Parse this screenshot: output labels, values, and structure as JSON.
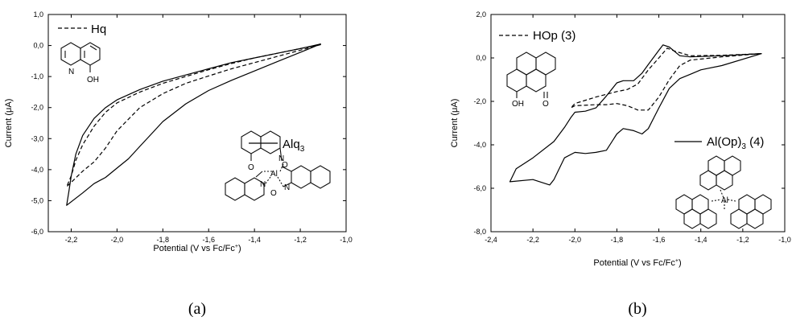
{
  "chart_data": [
    {
      "type": "line",
      "panel_label": "(a)",
      "xlabel": "Potential (V vs Fc/Fc",
      "xlabel_sup": "+",
      "xlabel_end": ")",
      "ylabel": "Current (μA)",
      "xlim": [
        -2.3,
        -1.0
      ],
      "ylim": [
        -6.0,
        1.0
      ],
      "x_ticks": [
        -2.2,
        -2.0,
        -1.8,
        -1.6,
        -1.4,
        -1.2,
        -1.0
      ],
      "x_tick_labels": [
        "-2,2",
        "-2,0",
        "-1,8",
        "-1,6",
        "-1,4",
        "-1,2",
        "-1,0"
      ],
      "y_ticks": [
        1.0,
        0.0,
        -1.0,
        -2.0,
        -3.0,
        -4.0,
        -5.0,
        -6.0
      ],
      "y_tick_labels": [
        "1,0",
        "0,0",
        "-1,0",
        "-2,0",
        "-3,0",
        "-4,0",
        "-5,0",
        "-6,0"
      ],
      "grid": false,
      "series": [
        {
          "name": "Hq",
          "style": "dashed",
          "points": [
            [
              -1.11,
              0.03
            ],
            [
              -1.2,
              -0.15
            ],
            [
              -1.3,
              -0.35
            ],
            [
              -1.4,
              -0.55
            ],
            [
              -1.5,
              -0.75
            ],
            [
              -1.6,
              -0.98
            ],
            [
              -1.7,
              -1.22
            ],
            [
              -1.8,
              -1.55
            ],
            [
              -1.9,
              -2.0
            ],
            [
              -2.0,
              -2.75
            ],
            [
              -2.05,
              -3.3
            ],
            [
              -2.1,
              -3.75
            ],
            [
              -2.15,
              -4.05
            ],
            [
              -2.22,
              -4.55
            ],
            [
              -2.2,
              -4.2
            ],
            [
              -2.18,
              -3.7
            ],
            [
              -2.15,
              -3.2
            ],
            [
              -2.1,
              -2.6
            ],
            [
              -2.05,
              -2.15
            ],
            [
              -2.0,
              -1.85
            ],
            [
              -1.9,
              -1.5
            ],
            [
              -1.8,
              -1.22
            ],
            [
              -1.7,
              -1.0
            ],
            [
              -1.6,
              -0.78
            ],
            [
              -1.5,
              -0.58
            ],
            [
              -1.4,
              -0.4
            ],
            [
              -1.3,
              -0.25
            ],
            [
              -1.2,
              -0.1
            ],
            [
              -1.11,
              0.03
            ]
          ]
        },
        {
          "name": "Alq",
          "name_sub": "3",
          "style": "solid",
          "points": [
            [
              -1.11,
              0.05
            ],
            [
              -1.2,
              -0.22
            ],
            [
              -1.3,
              -0.52
            ],
            [
              -1.4,
              -0.82
            ],
            [
              -1.5,
              -1.12
            ],
            [
              -1.6,
              -1.45
            ],
            [
              -1.7,
              -1.88
            ],
            [
              -1.8,
              -2.45
            ],
            [
              -1.85,
              -2.85
            ],
            [
              -1.9,
              -3.25
            ],
            [
              -1.95,
              -3.65
            ],
            [
              -2.0,
              -3.95
            ],
            [
              -2.05,
              -4.25
            ],
            [
              -2.1,
              -4.45
            ],
            [
              -2.15,
              -4.75
            ],
            [
              -2.22,
              -5.15
            ],
            [
              -2.21,
              -4.7
            ],
            [
              -2.2,
              -4.2
            ],
            [
              -2.18,
              -3.5
            ],
            [
              -2.15,
              -2.9
            ],
            [
              -2.1,
              -2.35
            ],
            [
              -2.05,
              -2.0
            ],
            [
              -2.0,
              -1.75
            ],
            [
              -1.9,
              -1.42
            ],
            [
              -1.8,
              -1.15
            ],
            [
              -1.7,
              -0.95
            ],
            [
              -1.6,
              -0.75
            ],
            [
              -1.5,
              -0.55
            ],
            [
              -1.4,
              -0.4
            ],
            [
              -1.3,
              -0.25
            ],
            [
              -1.2,
              -0.1
            ],
            [
              -1.11,
              0.05
            ]
          ]
        }
      ]
    },
    {
      "type": "line",
      "panel_label": "(b)",
      "xlabel": "Potential (V vs Fc/Fc",
      "xlabel_sup": "+",
      "xlabel_end": ")",
      "ylabel": "Current (μA)",
      "xlim": [
        -2.4,
        -1.0
      ],
      "ylim": [
        -8.0,
        2.0
      ],
      "x_ticks": [
        -2.4,
        -2.2,
        -2.0,
        -1.8,
        -1.6,
        -1.4,
        -1.2,
        -1.0
      ],
      "x_tick_labels": [
        "-2,4",
        "-2,2",
        "-2,0",
        "-1,8",
        "-1,6",
        "-1,4",
        "-1,2",
        "-1,0"
      ],
      "y_ticks": [
        2.0,
        0.0,
        -2.0,
        -4.0,
        -6.0,
        -8.0
      ],
      "y_tick_labels": [
        "2,0",
        "0,0",
        "-2,0",
        "-4,0",
        "-6,0",
        "-8,0"
      ],
      "grid": false,
      "series": [
        {
          "name": "HOp (3)",
          "style": "dashed",
          "points": [
            [
              -1.11,
              0.2
            ],
            [
              -1.3,
              0.05
            ],
            [
              -1.45,
              -0.1
            ],
            [
              -1.5,
              -0.35
            ],
            [
              -1.55,
              -1.0
            ],
            [
              -1.6,
              -1.8
            ],
            [
              -1.65,
              -2.4
            ],
            [
              -1.7,
              -2.4
            ],
            [
              -1.75,
              -2.2
            ],
            [
              -1.8,
              -2.1
            ],
            [
              -1.85,
              -2.15
            ],
            [
              -1.9,
              -2.15
            ],
            [
              -2.0,
              -2.2
            ],
            [
              -2.02,
              -2.3
            ],
            [
              -2.0,
              -2.1
            ],
            [
              -1.9,
              -1.8
            ],
            [
              -1.8,
              -1.55
            ],
            [
              -1.75,
              -1.45
            ],
            [
              -1.7,
              -1.2
            ],
            [
              -1.65,
              -0.55
            ],
            [
              -1.6,
              0.0
            ],
            [
              -1.56,
              0.45
            ],
            [
              -1.52,
              0.3
            ],
            [
              -1.45,
              0.1
            ],
            [
              -1.3,
              0.12
            ],
            [
              -1.11,
              0.2
            ]
          ]
        },
        {
          "name": "Al(Op)",
          "name_sub": "3",
          "name_end": " (4)",
          "style": "solid",
          "points": [
            [
              -1.11,
              0.2
            ],
            [
              -1.3,
              -0.35
            ],
            [
              -1.4,
              -0.55
            ],
            [
              -1.45,
              -0.75
            ],
            [
              -1.5,
              -0.95
            ],
            [
              -1.55,
              -1.4
            ],
            [
              -1.6,
              -2.3
            ],
            [
              -1.65,
              -3.25
            ],
            [
              -1.68,
              -3.5
            ],
            [
              -1.72,
              -3.35
            ],
            [
              -1.77,
              -3.25
            ],
            [
              -1.8,
              -3.5
            ],
            [
              -1.85,
              -4.25
            ],
            [
              -1.9,
              -4.35
            ],
            [
              -1.95,
              -4.4
            ],
            [
              -2.0,
              -4.35
            ],
            [
              -2.05,
              -4.6
            ],
            [
              -2.1,
              -5.6
            ],
            [
              -2.12,
              -5.85
            ],
            [
              -2.2,
              -5.6
            ],
            [
              -2.31,
              -5.7
            ],
            [
              -2.28,
              -5.1
            ],
            [
              -2.2,
              -4.6
            ],
            [
              -2.1,
              -3.85
            ],
            [
              -2.05,
              -3.2
            ],
            [
              -2.02,
              -2.75
            ],
            [
              -2.0,
              -2.5
            ],
            [
              -1.95,
              -2.45
            ],
            [
              -1.9,
              -2.3
            ],
            [
              -1.85,
              -1.75
            ],
            [
              -1.8,
              -1.15
            ],
            [
              -1.77,
              -1.05
            ],
            [
              -1.72,
              -1.05
            ],
            [
              -1.68,
              -0.7
            ],
            [
              -1.65,
              -0.3
            ],
            [
              -1.6,
              0.35
            ],
            [
              -1.58,
              0.6
            ],
            [
              -1.55,
              0.5
            ],
            [
              -1.5,
              0.1
            ],
            [
              -1.45,
              0.05
            ],
            [
              -1.3,
              0.1
            ],
            [
              -1.11,
              0.2
            ]
          ]
        }
      ]
    }
  ],
  "molecules": {
    "hq": {
      "n": "N",
      "oh": "OH"
    },
    "alq3": {
      "n1": "N",
      "n2": "N",
      "n3": "N",
      "o1": "O",
      "o2": "O",
      "o3": "O",
      "al": "Al"
    },
    "hop": {
      "oh": "OH",
      "o": "O"
    },
    "alop3": {
      "o": "O",
      "al": "Al"
    }
  }
}
